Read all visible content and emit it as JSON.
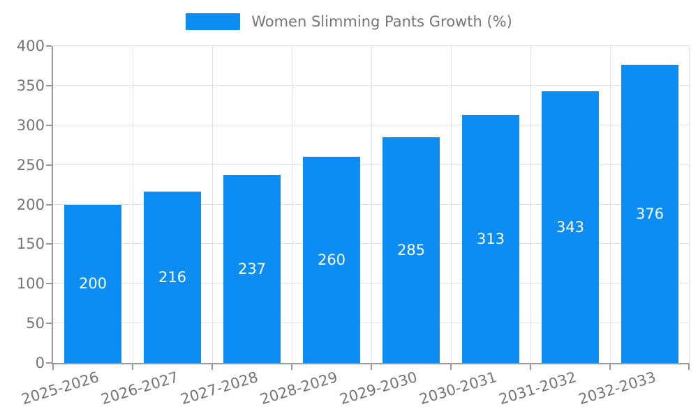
{
  "legend": {
    "label": "Women Slimming Pants Growth (%)"
  },
  "colors": {
    "bar": "#0C8DF4",
    "axis": "#999999",
    "grid": "#E2E2E2",
    "text": "#757575",
    "bar_label": "#FFFFFF",
    "background": "#FFFFFF"
  },
  "chart_data": {
    "type": "bar",
    "title": "Women Slimming Pants Growth (%)",
    "series_name": "Women Slimming Pants Growth (%)",
    "categories": [
      "2025-2026",
      "2026-2027",
      "2027-2028",
      "2028-2029",
      "2029-2030",
      "2030-2031",
      "2031-2032",
      "2032-2033"
    ],
    "values": [
      200,
      216,
      237,
      260,
      285,
      313,
      343,
      376
    ],
    "xlabel": "",
    "ylabel": "",
    "ylim": [
      0,
      400
    ],
    "ytick_step": 50,
    "grid": true,
    "legend_position": "top-center",
    "value_labels": "inside-center",
    "x_label_rotation_deg": -17
  }
}
